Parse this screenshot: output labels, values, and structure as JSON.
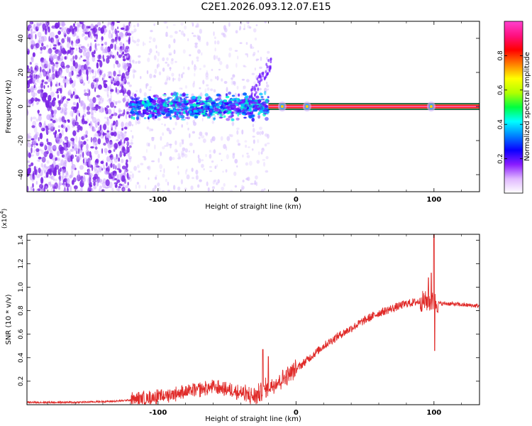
{
  "page_title": "C2E1.2026.093.12.07.E15",
  "colors": {
    "signal": "#e02a28",
    "spectrogram_scatter": "#7b25e6",
    "colorbar_stops": [
      "#ffffff",
      "#e0b8ff",
      "#8a1cff",
      "#0a00ff",
      "#0080ff",
      "#00ffff",
      "#00ff40",
      "#b0ff00",
      "#ffff00",
      "#ff8000",
      "#ff0000",
      "#ff1080",
      "#ff40d0"
    ]
  },
  "chart_data": [
    {
      "type": "heatmap",
      "name": "spectrogram",
      "xlabel": "Height of straight line (km)",
      "ylabel": "Frequency (Hz)",
      "xlim": [
        -195,
        133
      ],
      "ylim": [
        -50,
        50
      ],
      "xticks": [
        -100,
        0,
        100
      ],
      "xtick_labels": [
        "-100",
        "0",
        "100"
      ],
      "yticks": [
        -40,
        -20,
        0,
        20,
        40
      ],
      "ytick_labels": [
        "-40",
        "-20",
        "0",
        "20",
        "40"
      ],
      "colorbar": {
        "label": "Normalized spectral amplitude",
        "range": [
          0,
          1
        ],
        "ticks": [
          0.2,
          0.4,
          0.6,
          0.8
        ],
        "tick_labels": [
          "0.2",
          "0.4",
          "0.6",
          "0.8"
        ]
      },
      "features": {
        "noise_region_x": [
          -195,
          -120
        ],
        "sparse_region_x": [
          -120,
          -20
        ],
        "clustered_band_x": [
          -120,
          -20
        ],
        "clustered_band_freq_halfwidth": 6,
        "carrier_line_x": [
          -20,
          133
        ],
        "carrier_freq": 0,
        "carrier_amplitude": 1.0,
        "blips_x": [
          -10,
          8,
          98
        ]
      }
    },
    {
      "type": "line",
      "name": "snr",
      "xlabel": "Height of straight line (km)",
      "ylabel": "SNR (10 * v/v)",
      "exponent_label": "(x10",
      "exponent_power": "4",
      "exponent_close": ")",
      "xlim": [
        -195,
        133
      ],
      "ylim": [
        0,
        1.45
      ],
      "xticks": [
        -100,
        0,
        100
      ],
      "xtick_labels": [
        "-100",
        "0",
        "100"
      ],
      "yticks": [
        0.2,
        0.4,
        0.6,
        0.8,
        1.0,
        1.2,
        1.4
      ],
      "ytick_labels": [
        "0.2",
        "0.4",
        "0.6",
        "0.8",
        "1.0",
        "1.2",
        "1.4"
      ],
      "series": [
        {
          "name": "SNR",
          "envelope_x": [
            -195,
            -160,
            -130,
            -120,
            -100,
            -80,
            -60,
            -45,
            -35,
            -30,
            -20,
            -10,
            0,
            10,
            20,
            30,
            40,
            50,
            60,
            70,
            80,
            90,
            95,
            100,
            105,
            110,
            120,
            133
          ],
          "envelope_y": [
            0.02,
            0.02,
            0.03,
            0.04,
            0.07,
            0.11,
            0.15,
            0.12,
            0.08,
            0.07,
            0.15,
            0.22,
            0.3,
            0.4,
            0.5,
            0.58,
            0.65,
            0.72,
            0.78,
            0.82,
            0.86,
            0.88,
            0.88,
            0.87,
            0.86,
            0.86,
            0.85,
            0.84
          ],
          "spikes": [
            {
              "x": -24,
              "y": 0.47
            },
            {
              "x": -20,
              "y": 0.41
            },
            {
              "x": 96,
              "y": 1.08
            },
            {
              "x": 98,
              "y": 1.12
            },
            {
              "x": 100,
              "y": 1.45
            },
            {
              "x": 100.5,
              "y": 0.46
            }
          ]
        }
      ]
    }
  ]
}
